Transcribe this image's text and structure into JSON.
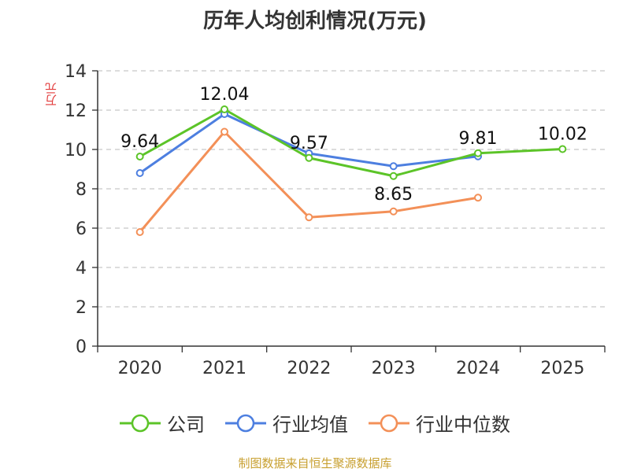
{
  "title": "历年人均创利情况(万元)",
  "source": "制图数据来自恒生聚源数据库",
  "colors": {
    "company": "#5cc428",
    "industry_avg": "#4d7fe0",
    "industry_median": "#f39058"
  },
  "chart_data": {
    "type": "line",
    "title": "历年人均创利情况(万元)",
    "xlabel": "",
    "ylabel": "万元",
    "categories": [
      "2020",
      "2021",
      "2022",
      "2023",
      "2024",
      "2025"
    ],
    "ylim": [
      0,
      14
    ],
    "yticks": [
      0,
      2,
      4,
      6,
      8,
      10,
      12,
      14
    ],
    "grid": true,
    "legend_position": "bottom",
    "series": [
      {
        "name": "公司",
        "key": "company",
        "values": [
          9.64,
          12.04,
          9.57,
          8.65,
          9.81,
          10.02
        ],
        "labels": [
          "9.64",
          "12.04",
          "9.57",
          "8.65",
          "9.81",
          "10.02"
        ]
      },
      {
        "name": "行业均值",
        "key": "industry_avg",
        "values": [
          8.8,
          11.8,
          9.8,
          9.15,
          9.65,
          null
        ]
      },
      {
        "name": "行业中位数",
        "key": "industry_median",
        "values": [
          5.8,
          10.9,
          6.55,
          6.85,
          7.55,
          null
        ]
      }
    ]
  }
}
